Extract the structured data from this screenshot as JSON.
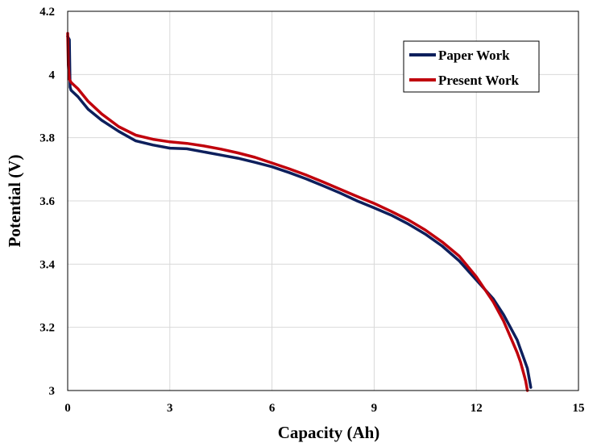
{
  "chart_data": {
    "type": "line",
    "title": "",
    "xlabel": "Capacity (Ah)",
    "ylabel": "Potential (V)",
    "xlim": [
      0,
      15
    ],
    "ylim": [
      3.0,
      4.2
    ],
    "xticks": [
      0,
      3,
      6,
      9,
      12,
      15
    ],
    "yticks": [
      3.0,
      3.2,
      3.4,
      3.6,
      3.8,
      4.0,
      4.2
    ],
    "xtick_labels": [
      "0",
      "3",
      "6",
      "9",
      "12",
      "15"
    ],
    "ytick_labels": [
      "3",
      "3.2",
      "3.4",
      "3.6",
      "3.8",
      "4",
      "4.2"
    ],
    "grid": true,
    "legend_position": "top-right",
    "series": [
      {
        "name": "Paper Work",
        "color": "#0d1f5c",
        "x": [
          0,
          0.05,
          0.07,
          0.1,
          0.3,
          0.6,
          1.0,
          1.5,
          2.0,
          2.5,
          3.0,
          3.5,
          4.0,
          4.5,
          5.0,
          5.5,
          6.0,
          6.5,
          7.0,
          7.5,
          8.0,
          8.5,
          9.0,
          9.5,
          10.0,
          10.5,
          11.0,
          11.5,
          12.0,
          12.5,
          12.8,
          13.0,
          13.2,
          13.3,
          13.4,
          13.5,
          13.55,
          13.6
        ],
        "values": [
          4.12,
          4.11,
          3.96,
          3.95,
          3.93,
          3.89,
          3.855,
          3.82,
          3.79,
          3.777,
          3.767,
          3.765,
          3.755,
          3.745,
          3.735,
          3.722,
          3.708,
          3.69,
          3.67,
          3.648,
          3.625,
          3.6,
          3.578,
          3.555,
          3.527,
          3.495,
          3.457,
          3.41,
          3.35,
          3.29,
          3.24,
          3.2,
          3.16,
          3.13,
          3.1,
          3.07,
          3.04,
          3.01
        ]
      },
      {
        "name": "Present Work",
        "color": "#c0000c",
        "x": [
          0,
          0.02,
          0.05,
          0.1,
          0.3,
          0.6,
          1.0,
          1.5,
          2.0,
          2.5,
          3.0,
          3.5,
          4.0,
          4.5,
          5.0,
          5.5,
          6.0,
          6.5,
          7.0,
          7.5,
          8.0,
          8.5,
          9.0,
          9.5,
          10.0,
          10.5,
          11.0,
          11.5,
          12.0,
          12.5,
          12.8,
          13.0,
          13.2,
          13.3,
          13.4,
          13.45,
          13.5
        ],
        "values": [
          4.13,
          4.03,
          3.985,
          3.975,
          3.955,
          3.915,
          3.875,
          3.835,
          3.808,
          3.795,
          3.787,
          3.782,
          3.774,
          3.764,
          3.752,
          3.738,
          3.72,
          3.702,
          3.682,
          3.66,
          3.637,
          3.614,
          3.592,
          3.567,
          3.54,
          3.508,
          3.47,
          3.425,
          3.36,
          3.28,
          3.22,
          3.17,
          3.12,
          3.09,
          3.05,
          3.03,
          3.0
        ]
      }
    ]
  }
}
